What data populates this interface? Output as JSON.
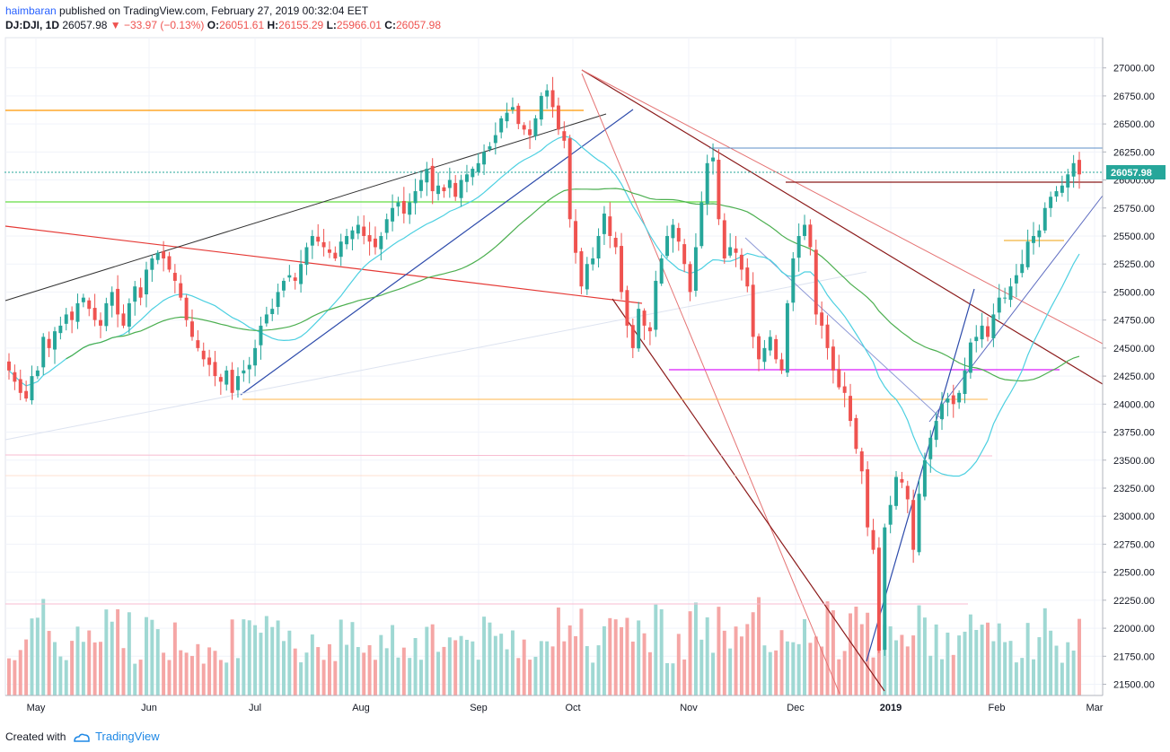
{
  "header": {
    "author": "haimbaran",
    "published_text": "published on TradingView.com, February 27, 2019 00:32:04 EET",
    "symbol": "DJ:DJI, 1D",
    "last": "26057.98",
    "change": "▼ −33.97 (−0.13%)",
    "o_label": "O:",
    "o_value": "26051.61",
    "h_label": "H:",
    "h_value": "26155.29",
    "l_label": "L:",
    "l_value": "25966.01",
    "c_label": "C:",
    "c_value": "26057.98"
  },
  "footer": {
    "created_with": "Created with",
    "brand": "TradingView"
  },
  "colors": {
    "up": "#26a69a",
    "down": "#ef5350",
    "vol_up": "#9fd8d3",
    "vol_down": "#f5a6a5",
    "grid": "#f0f3fa",
    "ma_fast": "#4dd0e1",
    "ma_slow": "#4caf50"
  },
  "chart_data": {
    "type": "candlestick",
    "instrument": "DJ:DJI",
    "interval": "1D",
    "last_price_label": "26057.98",
    "y_axis": {
      "min": 21400,
      "max": 27200,
      "ticks": [
        "27000.00",
        "26750.00",
        "26500.00",
        "26250.00",
        "26000.00",
        "25750.00",
        "25500.00",
        "25250.00",
        "25000.00",
        "24750.00",
        "24500.00",
        "24250.00",
        "24000.00",
        "23750.00",
        "23500.00",
        "23250.00",
        "23000.00",
        "22750.00",
        "22500.00",
        "22250.00",
        "22000.00",
        "21750.00",
        "21500.00"
      ]
    },
    "x_axis": {
      "ticks": [
        "May",
        "Jun",
        "Jul",
        "Aug",
        "Sep",
        "Oct",
        "Nov",
        "Dec",
        "2019",
        "Feb",
        "Mar"
      ]
    },
    "grid": true,
    "closes_approx": [
      24300,
      24200,
      24100,
      24050,
      24250,
      24300,
      24600,
      24500,
      24650,
      24700,
      24800,
      24750,
      24900,
      24950,
      24850,
      24750,
      24700,
      24900,
      25000,
      24800,
      24700,
      24900,
      25050,
      24950,
      25200,
      25300,
      25350,
      25300,
      25200,
      25100,
      24950,
      24750,
      24600,
      24500,
      24400,
      24350,
      24250,
      24200,
      24300,
      24100,
      24250,
      24300,
      24350,
      24500,
      24700,
      24800,
      24850,
      25000,
      25100,
      25150,
      25100,
      25250,
      25400,
      25500,
      25450,
      25400,
      25350,
      25300,
      25450,
      25500,
      25550,
      25600,
      25500,
      25450,
      25400,
      25500,
      25650,
      25750,
      25800,
      25700,
      25800,
      25900,
      26000,
      26100,
      25900,
      25950,
      25900,
      26000,
      25850,
      26000,
      26050,
      26100,
      26150,
      26250,
      26300,
      26400,
      26550,
      26600,
      26650,
      26500,
      26450,
      26400,
      26550,
      26750,
      26800,
      26650,
      26450,
      26350,
      25650,
      25350,
      25050,
      25250,
      25300,
      25500,
      25700,
      25500,
      25400,
      25000,
      24700,
      24500,
      24850,
      24700,
      24650,
      25100,
      25300,
      25500,
      25600,
      25450,
      25250,
      25000,
      25400,
      25800,
      26150,
      26200,
      25650,
      25300,
      25400,
      25350,
      25200,
      25050,
      24600,
      24400,
      24500,
      24600,
      24400,
      24300,
      24900,
      25300,
      25500,
      25600,
      25400,
      24800,
      24700,
      24500,
      24300,
      24150,
      24100,
      23850,
      23600,
      23400,
      22900,
      22700,
      21800,
      22900,
      23100,
      23350,
      23300,
      23150,
      22700,
      23200,
      23500,
      23700,
      23850,
      24000,
      24050,
      24000,
      24100,
      24300,
      24550,
      24600,
      24700,
      24600,
      24800,
      24950,
      24950,
      25050,
      25150,
      25250,
      25450,
      25500,
      25550,
      25750,
      25850,
      25900,
      25950,
      26050,
      26150,
      26050
    ]
  }
}
